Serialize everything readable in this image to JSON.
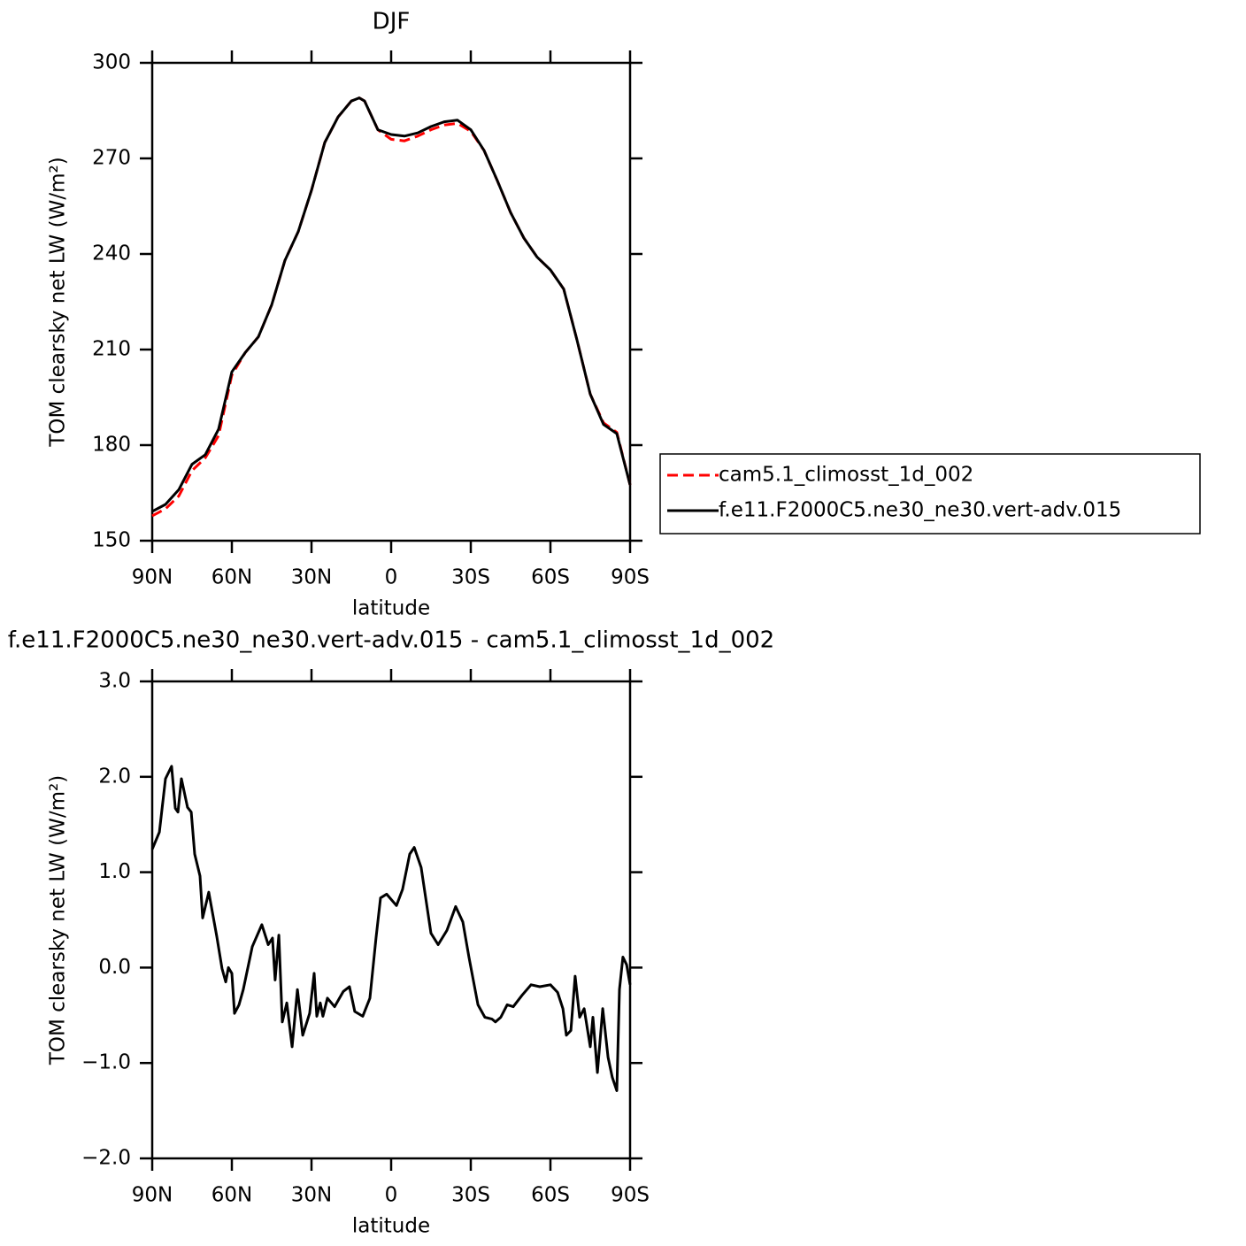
{
  "chart_data": [
    {
      "type": "line",
      "title": "DJF",
      "xlabel": "latitude",
      "ylabel": "TOM clearsky net LW (W/m²)",
      "x": [
        90,
        85,
        80,
        75,
        70,
        65,
        60,
        55,
        50,
        45,
        40,
        35,
        30,
        25,
        20,
        15,
        12,
        10,
        5,
        0,
        -5,
        -10,
        -15,
        -20,
        -25,
        -30,
        -35,
        -40,
        -45,
        -50,
        -55,
        -60,
        -65,
        -70,
        -75,
        -80,
        -85,
        -90
      ],
      "series": [
        {
          "name": "cam5.1_climosst_1d_002",
          "color": "#ff0000",
          "dashed": true,
          "values": [
            157.8,
            160,
            164,
            172,
            176,
            183,
            202,
            209,
            214,
            224,
            238,
            247,
            260,
            275,
            283,
            288,
            289,
            288,
            279,
            276,
            275.5,
            277,
            279,
            280.5,
            281,
            278.5,
            272.5,
            263,
            253,
            245,
            239,
            235,
            229,
            213,
            196,
            187,
            184,
            167.5
          ]
        },
        {
          "name": "f.e11.F2000C5.ne30_ne30.vert-adv.015",
          "color": "#000000",
          "dashed": false,
          "values": [
            159.2,
            161.4,
            166,
            174,
            177,
            185,
            203,
            209,
            214,
            224,
            238,
            247,
            260,
            275,
            283,
            288,
            289,
            288,
            279,
            277.5,
            277,
            278,
            280,
            281.5,
            282,
            279,
            272.5,
            263,
            253,
            245,
            239,
            235,
            229,
            213,
            196,
            186.5,
            183.6,
            167.5
          ]
        }
      ],
      "xlim": [
        90,
        -90
      ],
      "xticks": [
        {
          "value": 90,
          "label": "90N"
        },
        {
          "value": 60,
          "label": "60N"
        },
        {
          "value": 30,
          "label": "30N"
        },
        0,
        {
          "value": -30,
          "label": "30S"
        },
        {
          "value": -60,
          "label": "60S"
        },
        {
          "value": -90,
          "label": "90S"
        }
      ],
      "ylim": [
        150,
        300
      ],
      "yticks": [
        150,
        180,
        210,
        240,
        270,
        300
      ],
      "legend": "right"
    },
    {
      "type": "line",
      "title": "f.e11.F2000C5.ne30_ne30.vert-adv.015 - cam5.1_climosst_1d_002",
      "xlabel": "latitude",
      "ylabel": "TOM clearsky net LW (W/m²)",
      "x": [
        90,
        87.3,
        85,
        82.7,
        81.3,
        80.3,
        79,
        76.7,
        75.3,
        74,
        72,
        71,
        68.7,
        65.7,
        63.7,
        62.3,
        61.3,
        60,
        59,
        57.3,
        55.7,
        52.3,
        48.7,
        46.3,
        44.7,
        43.7,
        42.3,
        41,
        39.3,
        37.3,
        35.3,
        33.3,
        30.7,
        29,
        28,
        26.7,
        25.7,
        24,
        21.3,
        18,
        15.7,
        13.7,
        10.7,
        8,
        5.7,
        4,
        1.7,
        -2,
        -4.3,
        -7,
        -8.7,
        -11.3,
        -15,
        -17.7,
        -21,
        -24.3,
        -27,
        -29.3,
        -32.7,
        -35.3,
        -38,
        -39.3,
        -41.3,
        -43.7,
        -46,
        -49.3,
        -52.7,
        -56,
        -60,
        -62.7,
        -64.7,
        -66,
        -67.7,
        -69.3,
        -71,
        -72.7,
        -75,
        -76,
        -77.7,
        -79.7,
        -81.7,
        -83.3,
        -85,
        -86,
        -87.3,
        -88.7,
        -90
      ],
      "values": [
        1.24,
        1.42,
        1.98,
        2.11,
        1.67,
        1.63,
        1.98,
        1.68,
        1.63,
        1.19,
        0.96,
        0.52,
        0.79,
        0.33,
        -0.01,
        -0.15,
        0.0,
        -0.06,
        -0.48,
        -0.39,
        -0.23,
        0.22,
        0.45,
        0.24,
        0.31,
        -0.13,
        0.34,
        -0.57,
        -0.37,
        -0.83,
        -0.23,
        -0.71,
        -0.48,
        -0.06,
        -0.51,
        -0.37,
        -0.51,
        -0.32,
        -0.41,
        -0.25,
        -0.2,
        -0.46,
        -0.51,
        -0.32,
        0.31,
        0.73,
        0.77,
        0.65,
        0.82,
        1.19,
        1.26,
        1.05,
        0.36,
        0.24,
        0.39,
        0.64,
        0.48,
        0.11,
        -0.39,
        -0.52,
        -0.54,
        -0.57,
        -0.52,
        -0.39,
        -0.41,
        -0.29,
        -0.18,
        -0.2,
        -0.18,
        -0.26,
        -0.43,
        -0.71,
        -0.66,
        -0.09,
        -0.52,
        -0.43,
        -0.83,
        -0.52,
        -1.1,
        -0.43,
        -0.94,
        -1.15,
        -1.29,
        -0.23,
        0.11,
        0.03,
        -0.18
      ],
      "color": "#000000",
      "xlim": [
        90,
        -90
      ],
      "xticks": [
        {
          "value": 90,
          "label": "90N"
        },
        {
          "value": 60,
          "label": "60N"
        },
        {
          "value": 30,
          "label": "30N"
        },
        0,
        {
          "value": -30,
          "label": "30S"
        },
        {
          "value": -60,
          "label": "60S"
        },
        {
          "value": -90,
          "label": "90S"
        }
      ],
      "ylim": [
        -2,
        3
      ],
      "yticks": [
        {
          "value": -2,
          "label": "−2.0"
        },
        {
          "value": -1,
          "label": "−1.0"
        },
        {
          "value": 0,
          "label": "0.0"
        },
        {
          "value": 1,
          "label": "1.0"
        },
        {
          "value": 2,
          "label": "2.0"
        },
        {
          "value": 3,
          "label": "3.0"
        }
      ]
    }
  ]
}
